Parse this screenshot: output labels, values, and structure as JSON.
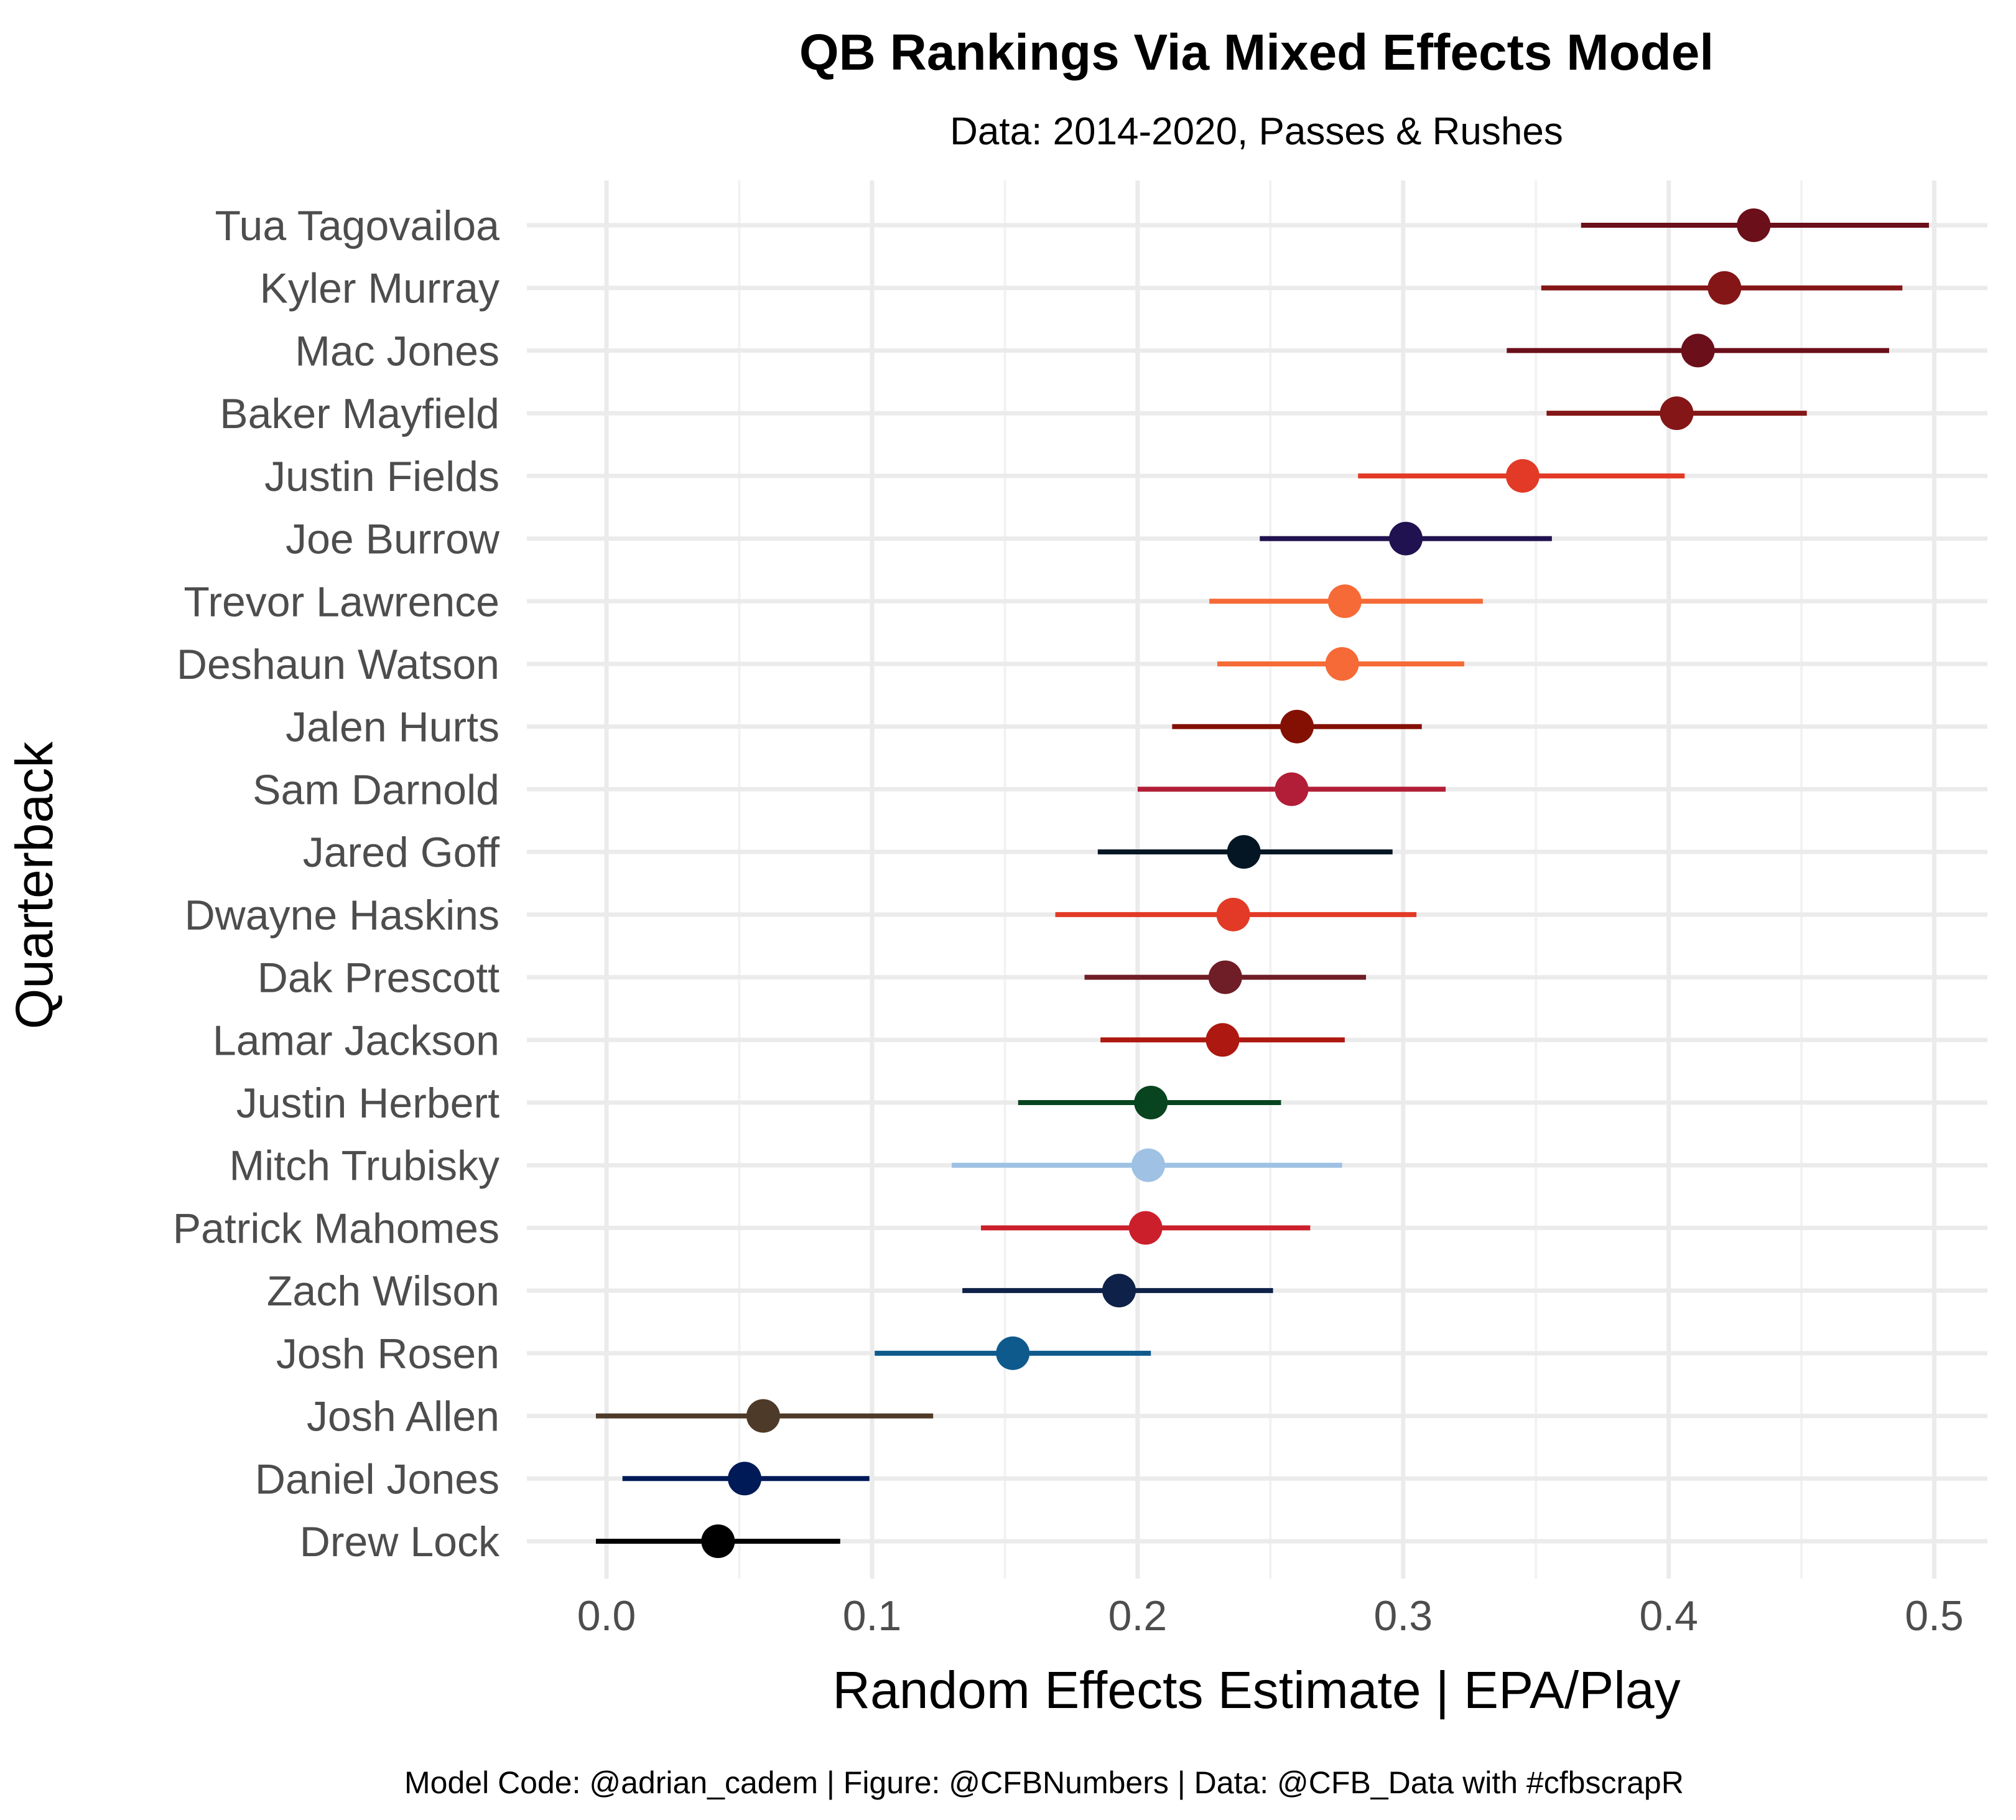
{
  "chart_data": {
    "type": "scatter",
    "title": "QB Rankings Via Mixed Effects Model",
    "subtitle": "Data: 2014-2020, Passes & Rushes",
    "xlabel": "Random Effects Estimate | EPA/Play",
    "ylabel": "Quarterback",
    "caption": "Model Code: @adrian_cadem | Figure: @CFBNumbers | Data: @CFB_Data with #cfbscrapR",
    "xlim": [
      -0.03,
      0.52
    ],
    "x_ticks": [
      0.0,
      0.1,
      0.2,
      0.3,
      0.4,
      0.5
    ],
    "x_tick_labels": [
      "0.0",
      "0.1",
      "0.2",
      "0.3",
      "0.4",
      "0.5"
    ],
    "grid": true,
    "legend": "none",
    "series": [
      {
        "label": "Tua Tagovailoa",
        "estimate": 0.432,
        "lower": 0.367,
        "upper": 0.498,
        "color": "#6b0f1a"
      },
      {
        "label": "Kyler Murray",
        "estimate": 0.421,
        "lower": 0.352,
        "upper": 0.488,
        "color": "#841617"
      },
      {
        "label": "Mac Jones",
        "estimate": 0.411,
        "lower": 0.339,
        "upper": 0.483,
        "color": "#6b0f1a"
      },
      {
        "label": "Baker Mayfield",
        "estimate": 0.403,
        "lower": 0.354,
        "upper": 0.452,
        "color": "#841617"
      },
      {
        "label": "Justin Fields",
        "estimate": 0.345,
        "lower": 0.283,
        "upper": 0.406,
        "color": "#e23a26"
      },
      {
        "label": "Joe Burrow",
        "estimate": 0.301,
        "lower": 0.246,
        "upper": 0.356,
        "color": "#201150"
      },
      {
        "label": "Trevor Lawrence",
        "estimate": 0.278,
        "lower": 0.227,
        "upper": 0.33,
        "color": "#f56a36"
      },
      {
        "label": "Deshaun Watson",
        "estimate": 0.277,
        "lower": 0.23,
        "upper": 0.323,
        "color": "#f56a36"
      },
      {
        "label": "Jalen Hurts",
        "estimate": 0.26,
        "lower": 0.213,
        "upper": 0.307,
        "color": "#841004"
      },
      {
        "label": "Sam Darnold",
        "estimate": 0.258,
        "lower": 0.2,
        "upper": 0.316,
        "color": "#b21e37"
      },
      {
        "label": "Jared Goff",
        "estimate": 0.24,
        "lower": 0.185,
        "upper": 0.296,
        "color": "#041624"
      },
      {
        "label": "Dwayne Haskins",
        "estimate": 0.236,
        "lower": 0.169,
        "upper": 0.305,
        "color": "#e23a26"
      },
      {
        "label": "Dak Prescott",
        "estimate": 0.233,
        "lower": 0.18,
        "upper": 0.286,
        "color": "#6f1d27"
      },
      {
        "label": "Lamar Jackson",
        "estimate": 0.232,
        "lower": 0.186,
        "upper": 0.278,
        "color": "#ad1810"
      },
      {
        "label": "Justin Herbert",
        "estimate": 0.205,
        "lower": 0.155,
        "upper": 0.254,
        "color": "#08441f"
      },
      {
        "label": "Mitch Trubisky",
        "estimate": 0.204,
        "lower": 0.13,
        "upper": 0.277,
        "color": "#9ec1e4"
      },
      {
        "label": "Patrick Mahomes",
        "estimate": 0.203,
        "lower": 0.141,
        "upper": 0.265,
        "color": "#cc1f2c"
      },
      {
        "label": "Zach Wilson",
        "estimate": 0.193,
        "lower": 0.134,
        "upper": 0.251,
        "color": "#0e2148"
      },
      {
        "label": "Josh Rosen",
        "estimate": 0.153,
        "lower": 0.101,
        "upper": 0.205,
        "color": "#0f5a8c"
      },
      {
        "label": "Josh Allen",
        "estimate": 0.059,
        "lower": -0.004,
        "upper": 0.123,
        "color": "#4e3a28"
      },
      {
        "label": "Daniel Jones",
        "estimate": 0.052,
        "lower": 0.006,
        "upper": 0.099,
        "color": "#001a57"
      },
      {
        "label": "Drew Lock",
        "estimate": 0.042,
        "lower": -0.004,
        "upper": 0.088,
        "color": "#000000"
      }
    ]
  }
}
